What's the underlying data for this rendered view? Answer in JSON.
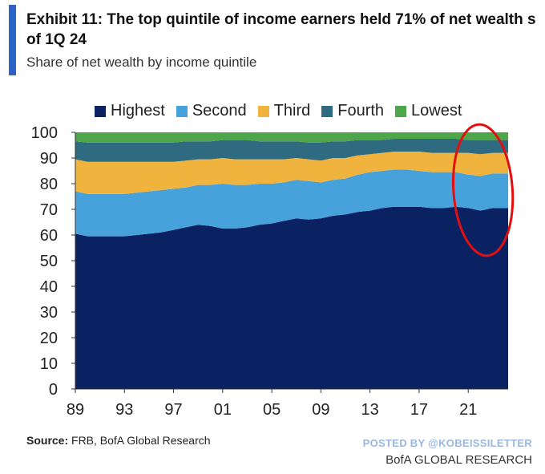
{
  "header": {
    "title_line1": "Exhibit 11: The top quintile of income earners held 71% of net wealth s",
    "title_line2": "of 1Q 24",
    "subtitle": "Share of net wealth by income quintile"
  },
  "footer": {
    "source_label": "Source:",
    "source_text": " FRB, BofA Global Research",
    "posted_by": "POSTED BY @KOBEISSILETTER",
    "brand": "BofA GLOBAL RESEARCH"
  },
  "colors": {
    "Highest": "#0b2262",
    "Second": "#47a2dc",
    "Third": "#f0b43e",
    "Fourth": "#2e6b80",
    "Lowest": "#4ea64a",
    "annotation": "#e01010"
  },
  "chart_data": {
    "type": "area",
    "stacked": true,
    "title": "",
    "xlabel": "",
    "ylabel": "",
    "ylim": [
      0,
      100
    ],
    "xlim": [
      1989,
      2024.25
    ],
    "yticks": [
      0,
      10,
      20,
      30,
      40,
      50,
      60,
      70,
      80,
      90,
      100
    ],
    "xtick_labels": [
      "89",
      "93",
      "97",
      "01",
      "05",
      "09",
      "13",
      "17",
      "21"
    ],
    "xtick_values": [
      1989,
      1993,
      1997,
      2001,
      2005,
      2009,
      2013,
      2017,
      2021
    ],
    "grid": false,
    "legend_position": "top",
    "x": [
      1989,
      1990,
      1991,
      1992,
      1993,
      1994,
      1995,
      1996,
      1997,
      1998,
      1999,
      2000,
      2001,
      2002,
      2003,
      2004,
      2005,
      2006,
      2007,
      2008,
      2009,
      2010,
      2011,
      2012,
      2013,
      2014,
      2015,
      2016,
      2017,
      2018,
      2019,
      2020,
      2021,
      2022,
      2023,
      2024.25
    ],
    "series": [
      {
        "name": "Highest",
        "values": [
          60.5,
          59.5,
          59.5,
          59.5,
          59.5,
          60.0,
          60.5,
          61.0,
          62.0,
          63.0,
          64.0,
          63.5,
          62.5,
          62.5,
          63.0,
          64.0,
          64.5,
          65.5,
          66.5,
          66.0,
          66.5,
          67.5,
          68.0,
          69.0,
          69.5,
          70.5,
          71.0,
          71.0,
          71.0,
          70.5,
          70.5,
          71.0,
          70.5,
          69.5,
          70.5,
          70.5
        ]
      },
      {
        "name": "Second",
        "values": [
          16.5,
          16.5,
          16.5,
          16.5,
          16.5,
          16.5,
          16.5,
          16.5,
          16.0,
          15.5,
          15.5,
          16.0,
          17.5,
          17.0,
          16.5,
          16.0,
          15.5,
          15.0,
          15.0,
          15.0,
          14.0,
          14.0,
          14.0,
          14.5,
          15.0,
          14.5,
          14.5,
          14.5,
          14.0,
          14.0,
          14.0,
          13.5,
          13.0,
          13.5,
          13.5,
          13.5
        ]
      },
      {
        "name": "Third",
        "values": [
          12.5,
          12.5,
          12.5,
          12.5,
          12.5,
          12.0,
          11.5,
          11.0,
          10.5,
          10.5,
          10.0,
          10.0,
          10.0,
          10.0,
          10.0,
          9.5,
          9.5,
          9.0,
          8.5,
          8.5,
          8.5,
          8.5,
          8.0,
          7.5,
          7.0,
          7.0,
          7.0,
          7.0,
          7.5,
          7.5,
          7.5,
          7.5,
          8.5,
          8.5,
          8.0,
          8.0
        ]
      },
      {
        "name": "Fourth",
        "values": [
          7.0,
          7.5,
          7.5,
          7.5,
          7.5,
          7.5,
          7.5,
          7.5,
          7.5,
          7.5,
          7.0,
          7.0,
          7.0,
          7.5,
          7.5,
          7.0,
          7.0,
          7.0,
          6.5,
          6.5,
          7.0,
          6.5,
          6.5,
          6.0,
          5.5,
          5.0,
          5.0,
          5.0,
          5.0,
          5.5,
          5.5,
          5.5,
          5.0,
          5.5,
          5.0,
          5.0
        ]
      },
      {
        "name": "Lowest",
        "values": [
          3.5,
          4.0,
          4.0,
          4.0,
          4.0,
          4.0,
          4.0,
          4.0,
          4.0,
          3.5,
          3.5,
          3.5,
          3.0,
          3.0,
          3.0,
          3.5,
          3.5,
          3.5,
          3.5,
          4.0,
          4.0,
          3.5,
          3.5,
          3.0,
          3.0,
          3.0,
          2.5,
          2.5,
          2.5,
          2.5,
          2.5,
          2.5,
          3.0,
          3.0,
          3.0,
          3.0
        ]
      }
    ],
    "annotations": [
      {
        "type": "ellipse",
        "color": "annotation",
        "x_range": [
          2019.8,
          2024.6
        ],
        "y_range": [
          55,
          100
        ]
      }
    ]
  }
}
